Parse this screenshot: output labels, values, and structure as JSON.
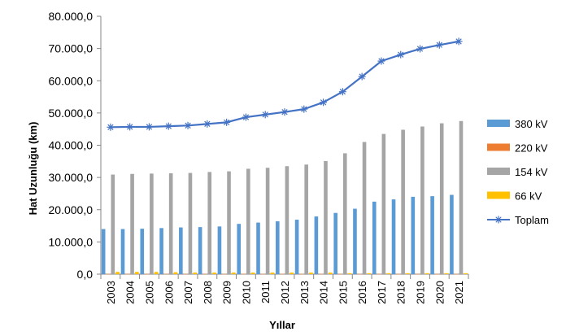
{
  "chart_data": {
    "type": "bar",
    "title": "",
    "xlabel": "Yıllar",
    "ylabel": "Hat Uzunluğu (km)",
    "ylim": [
      0,
      80000
    ],
    "yticks": [
      0,
      10000,
      20000,
      30000,
      40000,
      50000,
      60000,
      70000,
      80000
    ],
    "ytick_labels": [
      "0,0",
      "10.000,0",
      "20.000,0",
      "30.000,0",
      "40.000,0",
      "50.000,0",
      "60.000,0",
      "70.000,0",
      "80.000,0"
    ],
    "grid": false,
    "legend_position": "right",
    "categories": [
      "2003",
      "2004",
      "2005",
      "2006",
      "2007",
      "2008",
      "2009",
      "2010",
      "2011",
      "2012",
      "2013",
      "2014",
      "2015",
      "2016",
      "2017",
      "2018",
      "2019",
      "2020",
      "2021"
    ],
    "series": [
      {
        "name": "380 kV",
        "type": "bar",
        "color": "#5b9bd5",
        "values": [
          14000,
          14000,
          14100,
          14300,
          14500,
          14600,
          14800,
          15600,
          16000,
          16400,
          16900,
          17900,
          19000,
          20300,
          22500,
          23200,
          24000,
          24200,
          24600
        ]
      },
      {
        "name": "220 kV",
        "type": "bar",
        "color": "#ed7d31",
        "values": [
          80,
          80,
          80,
          80,
          80,
          80,
          80,
          80,
          80,
          80,
          80,
          80,
          80,
          80,
          80,
          80,
          80,
          80,
          80
        ]
      },
      {
        "name": "154 kV",
        "type": "bar",
        "color": "#a5a5a5",
        "values": [
          30900,
          31100,
          31200,
          31300,
          31400,
          31700,
          31900,
          32700,
          33000,
          33500,
          34000,
          35100,
          37500,
          41000,
          43500,
          44800,
          45800,
          46800,
          47500
        ]
      },
      {
        "name": "66 kV",
        "type": "bar",
        "color": "#ffc000",
        "values": [
          700,
          700,
          700,
          600,
          500,
          500,
          500,
          500,
          500,
          500,
          500,
          500,
          300,
          300,
          300,
          300,
          300,
          300,
          300
        ]
      },
      {
        "name": "Toplam",
        "type": "line",
        "color": "#4472c4",
        "values": [
          45600,
          45700,
          45700,
          45900,
          46100,
          46600,
          47100,
          48700,
          49500,
          50300,
          51200,
          53300,
          56600,
          61300,
          66100,
          68100,
          69900,
          71100,
          72200
        ]
      }
    ]
  }
}
